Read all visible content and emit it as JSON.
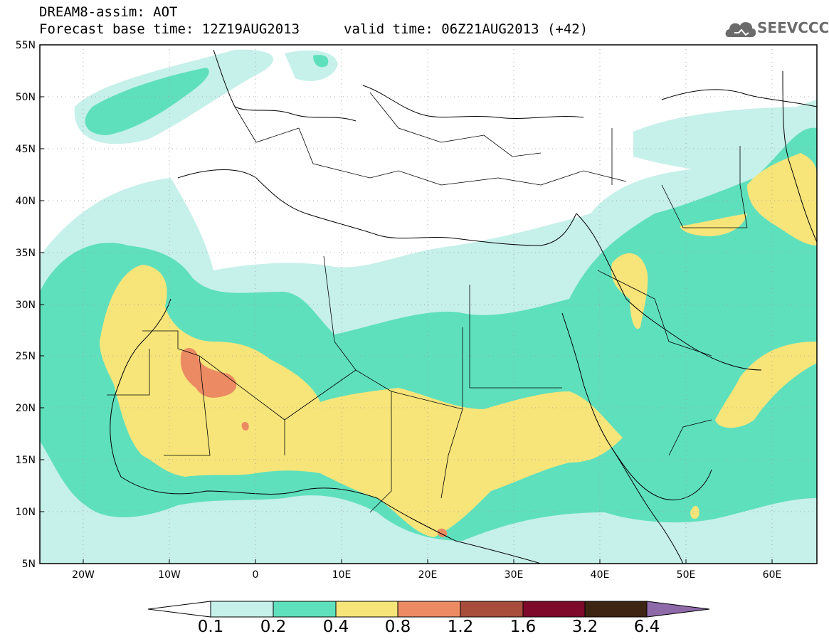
{
  "header": {
    "line1": "DREAM8-assim: AOT",
    "base_time": "Forecast base time: 12Z19AUG2013",
    "valid_time": "valid time: 06Z21AUG2013 (+42)"
  },
  "logo": {
    "text": "SEEVCCC",
    "icon": "cloud-icon"
  },
  "map": {
    "lat_labels": [
      "55N",
      "50N",
      "45N",
      "40N",
      "35N",
      "30N",
      "25N",
      "20N",
      "15N",
      "10N",
      "5N"
    ],
    "lon_labels": [
      "20W",
      "10W",
      "0",
      "10E",
      "20E",
      "30E",
      "40E",
      "50E",
      "60E"
    ],
    "lon_range": [
      -25,
      65
    ],
    "lat_range": [
      5,
      55
    ],
    "gridlines": "dotted"
  },
  "colorbar": {
    "levels": [
      "0.1",
      "0.2",
      "0.4",
      "0.8",
      "1.2",
      "1.6",
      "3.2",
      "6.4"
    ],
    "colors": [
      "#ffffff",
      "#c6f0ea",
      "#5fe0bd",
      "#f7e57a",
      "#ec8b63",
      "#a84c3b",
      "#7d0a2a",
      "#3d2513",
      "#8e6aa8"
    ]
  },
  "legend_colors": {
    "aot_0_1_to_0_2": "#c6f0ea",
    "aot_0_2_to_0_4": "#5fe0bd",
    "aot_0_4_to_0_8": "#f7e57a",
    "aot_0_8_to_1_2": "#ec8b63"
  }
}
